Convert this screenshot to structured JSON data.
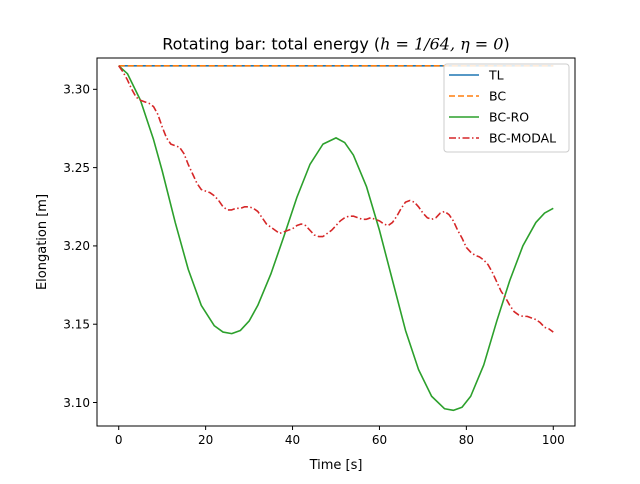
{
  "chart_data": {
    "type": "line",
    "title_prefix": "Rotating bar: total energy (",
    "title_math": "h = 1/64, η = 0",
    "title_suffix": ")",
    "xlabel": "Time [s]",
    "ylabel": "Elongation [m]",
    "xlim": [
      -5,
      105
    ],
    "ylim": [
      3.085,
      3.32
    ],
    "xticks": [
      0,
      20,
      40,
      60,
      80,
      100
    ],
    "yticks": [
      3.1,
      3.15,
      3.2,
      3.25,
      3.3
    ],
    "xtick_labels": [
      "0",
      "20",
      "40",
      "60",
      "80",
      "100"
    ],
    "ytick_labels": [
      "3.10",
      "3.15",
      "3.20",
      "3.25",
      "3.30"
    ],
    "grid": false,
    "legend_position": "top-right",
    "series": [
      {
        "name": "TL",
        "color": "#1f77b4",
        "style": "solid",
        "x": [
          0,
          100
        ],
        "y": [
          3.315,
          3.315
        ]
      },
      {
        "name": "BC",
        "color": "#ff7f0e",
        "style": "dashed",
        "x": [
          0,
          100
        ],
        "y": [
          3.315,
          3.315
        ]
      },
      {
        "name": "BC-RO",
        "color": "#2ca02c",
        "style": "solid",
        "x": [
          0,
          2,
          5,
          8,
          10,
          13,
          16,
          19,
          22,
          24,
          26,
          28,
          30,
          32,
          35,
          38,
          41,
          44,
          47,
          50,
          52,
          54,
          57,
          60,
          63,
          66,
          69,
          72,
          75,
          77,
          79,
          81,
          84,
          87,
          90,
          93,
          96,
          98,
          100
        ],
        "y": [
          3.315,
          3.31,
          3.293,
          3.268,
          3.248,
          3.215,
          3.185,
          3.162,
          3.149,
          3.145,
          3.144,
          3.146,
          3.152,
          3.162,
          3.182,
          3.206,
          3.231,
          3.252,
          3.265,
          3.269,
          3.266,
          3.258,
          3.238,
          3.21,
          3.178,
          3.146,
          3.121,
          3.104,
          3.096,
          3.095,
          3.097,
          3.104,
          3.124,
          3.152,
          3.178,
          3.2,
          3.215,
          3.221,
          3.224
        ]
      },
      {
        "name": "BC-MODAL",
        "color": "#d62728",
        "style": "dashdot",
        "x": [
          0,
          1,
          2,
          3,
          4,
          5,
          6,
          7,
          8,
          9,
          10,
          11,
          12,
          13,
          14,
          15,
          16,
          17,
          18,
          19,
          20,
          21,
          22,
          23,
          24,
          25,
          26,
          27,
          28,
          29,
          30,
          31,
          32,
          33,
          34,
          35,
          36,
          37,
          38,
          39,
          40,
          41,
          42,
          43,
          44,
          45,
          46,
          47,
          48,
          49,
          50,
          51,
          52,
          53,
          54,
          55,
          56,
          57,
          58,
          59,
          60,
          61,
          62,
          63,
          64,
          65,
          66,
          67,
          68,
          69,
          70,
          71,
          72,
          73,
          74,
          75,
          76,
          77,
          78,
          79,
          80,
          81,
          82,
          83,
          84,
          85,
          86,
          87,
          88,
          89,
          90,
          91,
          92,
          93,
          94,
          95,
          96,
          97,
          98,
          99,
          100
        ],
        "y": [
          3.315,
          3.311,
          3.306,
          3.3,
          3.295,
          3.293,
          3.292,
          3.291,
          3.289,
          3.284,
          3.276,
          3.269,
          3.265,
          3.264,
          3.263,
          3.259,
          3.252,
          3.246,
          3.24,
          3.236,
          3.235,
          3.234,
          3.232,
          3.229,
          3.225,
          3.223,
          3.223,
          3.224,
          3.224,
          3.225,
          3.225,
          3.224,
          3.222,
          3.218,
          3.214,
          3.212,
          3.21,
          3.208,
          3.209,
          3.21,
          3.211,
          3.213,
          3.214,
          3.213,
          3.21,
          3.207,
          3.206,
          3.206,
          3.208,
          3.21,
          3.213,
          3.216,
          3.218,
          3.219,
          3.219,
          3.218,
          3.217,
          3.217,
          3.218,
          3.217,
          3.216,
          3.214,
          3.213,
          3.215,
          3.219,
          3.224,
          3.228,
          3.229,
          3.228,
          3.225,
          3.221,
          3.218,
          3.217,
          3.218,
          3.221,
          3.222,
          3.22,
          3.216,
          3.21,
          3.205,
          3.199,
          3.196,
          3.194,
          3.193,
          3.191,
          3.188,
          3.183,
          3.177,
          3.171,
          3.167,
          3.162,
          3.158,
          3.156,
          3.155,
          3.155,
          3.154,
          3.153,
          3.151,
          3.148,
          3.147,
          3.145
        ]
      }
    ]
  }
}
